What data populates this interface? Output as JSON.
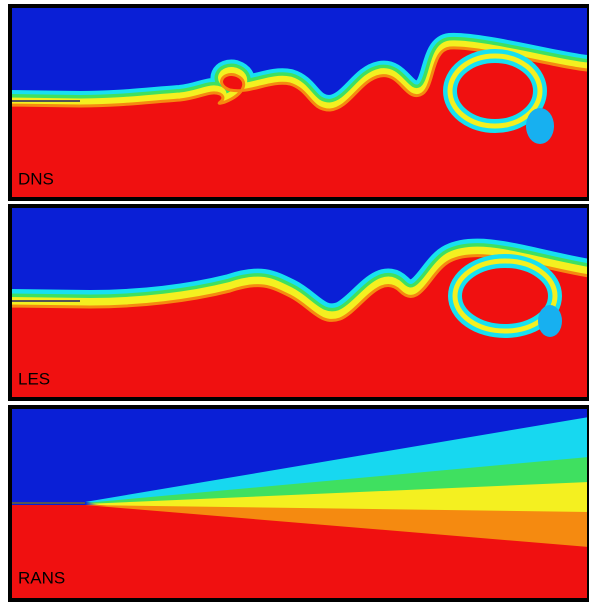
{
  "panels": [
    {
      "label": "DNS"
    },
    {
      "label": "LES"
    },
    {
      "label": "RANS"
    }
  ]
}
